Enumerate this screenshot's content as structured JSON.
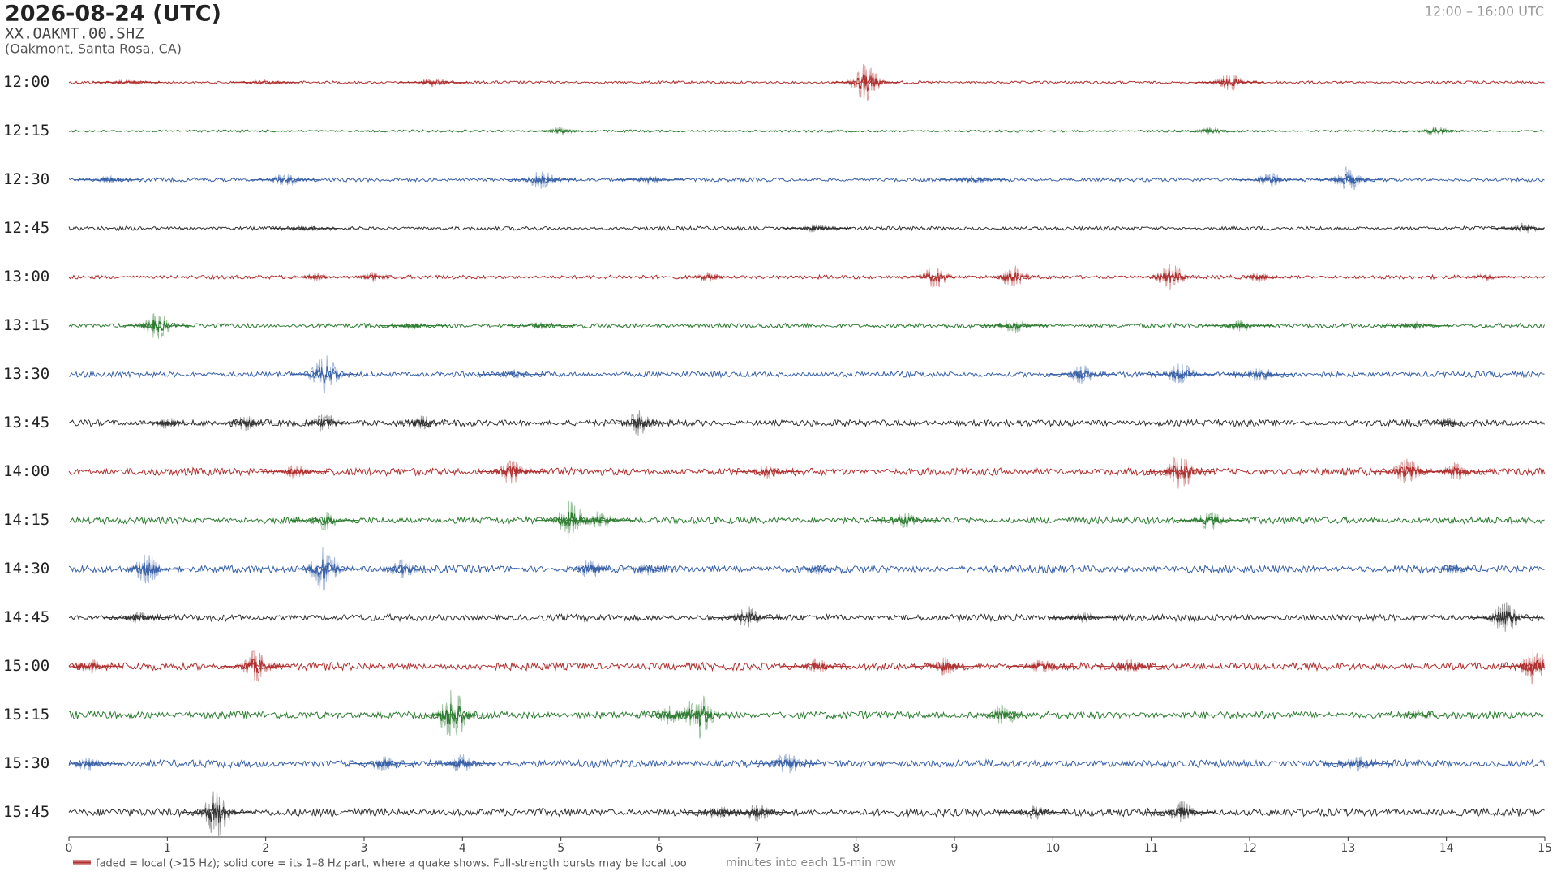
{
  "chart_data": {
    "type": "helicorder",
    "title": "2026-08-24  (UTC)",
    "subtitle": "XX.OAKMT.00.SHZ",
    "location": "(Oakmont, Santa Rosa, CA)",
    "time_range": "12:00 – 16:00 UTC",
    "x_label": "minutes into each 15-min row",
    "legend": "faded = local (>15 Hz); solid core = its 1–8 Hz part, where a quake shows. Full-strength bursts may be local too",
    "xlim": [
      0,
      15
    ],
    "xticks": [
      0,
      1,
      2,
      3,
      4,
      5,
      6,
      7,
      8,
      9,
      10,
      11,
      12,
      13,
      14,
      15
    ],
    "series": [
      {
        "name": "12:00",
        "color": "#b03030",
        "noise": 1.5,
        "x": [
          0.6,
          2,
          3.7,
          8.1,
          11.8
        ],
        "values": [
          3,
          3,
          5,
          20,
          9
        ]
      },
      {
        "name": "12:15",
        "color": "#2e7d32",
        "noise": 1.2,
        "x": [
          5,
          11.6,
          13.9
        ],
        "values": [
          4,
          4,
          5
        ]
      },
      {
        "name": "12:30",
        "color": "#3a62a8",
        "noise": 2,
        "x": [
          0.4,
          2.2,
          4.8,
          5.9,
          9.2,
          12.2,
          13
        ],
        "values": [
          4,
          7,
          10,
          5,
          5,
          8,
          13
        ]
      },
      {
        "name": "12:45",
        "color": "#333333",
        "noise": 2,
        "x": [
          2.4,
          7.6,
          14.8
        ],
        "values": [
          3,
          5,
          6
        ]
      },
      {
        "name": "13:00",
        "color": "#b03030",
        "noise": 2,
        "x": [
          2.5,
          3.1,
          6.5,
          8.8,
          9.6,
          11.2,
          12.1,
          14.4
        ],
        "values": [
          4,
          6,
          5,
          12,
          12,
          14,
          5,
          4
        ]
      },
      {
        "name": "13:15",
        "color": "#2e7d32",
        "noise": 2.5,
        "x": [
          0.9,
          3.5,
          4.8,
          9.6,
          11.9,
          13.7
        ],
        "values": [
          14,
          4,
          4,
          8,
          6,
          4
        ]
      },
      {
        "name": "13:30",
        "color": "#3a62a8",
        "noise": 3,
        "x": [
          2.6,
          4.5,
          10.3,
          11.3,
          12.1
        ],
        "values": [
          20,
          5,
          10,
          12,
          9
        ]
      },
      {
        "name": "13:45",
        "color": "#333333",
        "noise": 3.5,
        "x": [
          1,
          1.8,
          2.6,
          3.6,
          5.8,
          14
        ],
        "values": [
          6,
          8,
          10,
          8,
          14,
          6
        ]
      },
      {
        "name": "14:00",
        "color": "#b03030",
        "noise": 4,
        "x": [
          2.3,
          4.5,
          7.1,
          11.3,
          13.6,
          14.1
        ],
        "values": [
          7,
          14,
          8,
          20,
          14,
          10
        ]
      },
      {
        "name": "14:15",
        "color": "#2e7d32",
        "noise": 3.5,
        "x": [
          2.6,
          5.1,
          5.4,
          8.5,
          11.6
        ],
        "values": [
          10,
          20,
          10,
          8,
          10
        ]
      },
      {
        "name": "14:30",
        "color": "#3a62a8",
        "noise": 4,
        "x": [
          0.8,
          2.6,
          3.4,
          5.3,
          5.9,
          7.6,
          14.1
        ],
        "values": [
          16,
          26,
          10,
          10,
          8,
          6,
          6
        ]
      },
      {
        "name": "14:45",
        "color": "#333333",
        "noise": 3.5,
        "x": [
          0.7,
          6.9,
          10.3,
          14.6
        ],
        "values": [
          6,
          12,
          6,
          18
        ]
      },
      {
        "name": "15:00",
        "color": "#b03030",
        "noise": 4,
        "x": [
          0.2,
          1.9,
          7.6,
          8.9,
          9.9,
          10.8,
          14.9
        ],
        "values": [
          8,
          18,
          8,
          10,
          8,
          8,
          20
        ]
      },
      {
        "name": "15:15",
        "color": "#2e7d32",
        "noise": 4,
        "x": [
          3.9,
          6.1,
          6.4,
          9.5,
          13.7
        ],
        "values": [
          30,
          10,
          25,
          12,
          6
        ]
      },
      {
        "name": "15:30",
        "color": "#3a62a8",
        "noise": 4,
        "x": [
          0.2,
          3.2,
          4,
          7.3,
          13.1
        ],
        "values": [
          7,
          8,
          10,
          12,
          8
        ]
      },
      {
        "name": "15:45",
        "color": "#333333",
        "noise": 4,
        "x": [
          1.5,
          6.6,
          7,
          9.8,
          11.3
        ],
        "values": [
          26,
          8,
          9,
          8,
          12
        ]
      }
    ]
  }
}
